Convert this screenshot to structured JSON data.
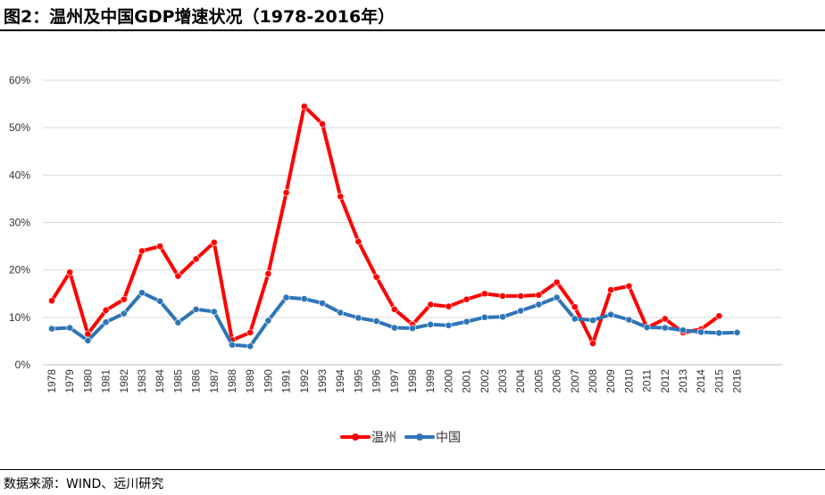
{
  "title": "图2：温州及中国GDP增速状况（1978-2016年）",
  "source": "数据来源：WIND、远川研究",
  "chart_data": {
    "type": "line",
    "title": "图2：温州及中国GDP增速状况（1978-2016年）",
    "xlabel": "",
    "ylabel": "",
    "ylim": [
      0,
      60
    ],
    "yticks": [
      "0%",
      "10%",
      "20%",
      "30%",
      "40%",
      "50%",
      "60%"
    ],
    "categories": [
      "1978",
      "1979",
      "1980",
      "1981",
      "1982",
      "1983",
      "1984",
      "1985",
      "1986",
      "1987",
      "1988",
      "1989",
      "1990",
      "1991",
      "1992",
      "1993",
      "1994",
      "1995",
      "1996",
      "1997",
      "1998",
      "1999",
      "2000",
      "2001",
      "2002",
      "2003",
      "2004",
      "2005",
      "2006",
      "2007",
      "2008",
      "2009",
      "2010",
      "2011",
      "2012",
      "2013",
      "2014",
      "2015",
      "2016"
    ],
    "legend_position": "bottom",
    "series": [
      {
        "name": "温州",
        "color": "#ff0000",
        "values": [
          13.5,
          19.5,
          6.5,
          11.5,
          13.8,
          24.0,
          25.0,
          18.7,
          22.3,
          25.8,
          5.2,
          6.8,
          19.2,
          36.3,
          54.5,
          50.8,
          35.5,
          26.0,
          18.5,
          11.7,
          8.5,
          12.7,
          12.3,
          13.8,
          15.0,
          14.5,
          14.5,
          14.7,
          17.4,
          12.2,
          4.5,
          15.8,
          16.6,
          7.8,
          9.7,
          6.8,
          7.5,
          10.3,
          null
        ]
      },
      {
        "name": "中国",
        "color": "#2e75b6",
        "values": [
          7.6,
          7.8,
          5.1,
          9.0,
          10.8,
          15.2,
          13.4,
          8.9,
          11.7,
          11.2,
          4.2,
          3.9,
          9.3,
          14.2,
          13.9,
          13.0,
          11.0,
          9.9,
          9.2,
          7.8,
          7.7,
          8.5,
          8.3,
          9.1,
          10.0,
          10.1,
          11.4,
          12.7,
          14.2,
          9.7,
          9.4,
          10.6,
          9.5,
          7.9,
          7.8,
          7.3,
          6.9,
          6.7,
          6.8
        ]
      }
    ]
  }
}
